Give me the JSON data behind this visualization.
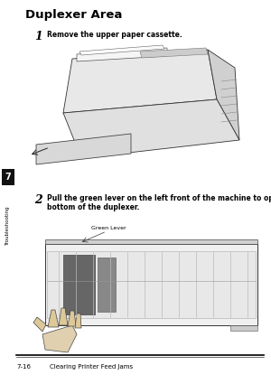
{
  "bg_color": "#ffffff",
  "title": "Duplexer Area",
  "title_fontsize": 9.5,
  "step1_num": "1",
  "step1_text": "Remove the upper paper cassette.",
  "step2_num": "2",
  "step2_text": "Pull the green lever on the left front of the machine to open the\nbottom of the duplexer.",
  "green_lever_label": "Green Lever",
  "footer_left": "7-16",
  "footer_right": "Clearing Printer Feed Jams",
  "sidebar_text": "Troubleshooting",
  "sidebar_num": "7",
  "text_color": "#000000",
  "sidebar_box_color": "#111111",
  "sidebar_text_color": "#000000"
}
